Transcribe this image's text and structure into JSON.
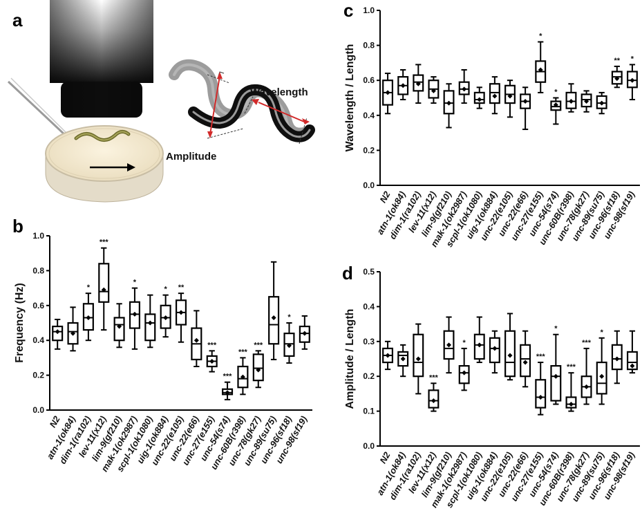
{
  "panels": {
    "a": "a",
    "b": "b",
    "c": "c",
    "d": "d"
  },
  "illustration": {
    "wavelength_label": "Wavelength",
    "amplitude_label": "Amplitude",
    "arrow_color": "#d22a2a"
  },
  "chart_data": [
    {
      "panel": "b",
      "type": "boxplot",
      "ylabel": "Frequency (Hz)",
      "ylim": [
        0.0,
        1.0
      ],
      "yticks": [
        "0.0",
        "0.2",
        "0.4",
        "0.6",
        "0.8",
        "1.0"
      ],
      "grid": false,
      "categories": [
        "N2",
        "atn-1(ok84)",
        "dim-1(ra102)",
        "lev-11(x12)",
        "lim-9(gf210)",
        "mak-1(ok2987)",
        "scpl-1(ok1080)",
        "uig-1(ok884)",
        "unc-22(e105)",
        "unc-22(e66)",
        "unc-27(e155)",
        "unc-54(s74)",
        "unc-60B(r398)",
        "unc-78(gk27)",
        "unc-89(su75)",
        "unc-96(sf18)",
        "unc-98(sf19)"
      ],
      "boxes": [
        {
          "min": 0.35,
          "q1": 0.4,
          "median": 0.45,
          "q3": 0.48,
          "max": 0.52,
          "mean": 0.45,
          "sig": ""
        },
        {
          "min": 0.34,
          "q1": 0.38,
          "median": 0.45,
          "q3": 0.5,
          "max": 0.59,
          "mean": 0.44,
          "sig": ""
        },
        {
          "min": 0.4,
          "q1": 0.46,
          "median": 0.53,
          "q3": 0.61,
          "max": 0.67,
          "mean": 0.53,
          "sig": "*"
        },
        {
          "min": 0.46,
          "q1": 0.62,
          "median": 0.68,
          "q3": 0.84,
          "max": 0.93,
          "mean": 0.69,
          "sig": "***"
        },
        {
          "min": 0.36,
          "q1": 0.4,
          "median": 0.49,
          "q3": 0.53,
          "max": 0.61,
          "mean": 0.48,
          "sig": ""
        },
        {
          "min": 0.35,
          "q1": 0.47,
          "median": 0.55,
          "q3": 0.62,
          "max": 0.7,
          "mean": 0.55,
          "sig": "*"
        },
        {
          "min": 0.36,
          "q1": 0.4,
          "median": 0.5,
          "q3": 0.55,
          "max": 0.66,
          "mean": 0.5,
          "sig": ""
        },
        {
          "min": 0.42,
          "q1": 0.47,
          "median": 0.53,
          "q3": 0.6,
          "max": 0.66,
          "mean": 0.53,
          "sig": "*"
        },
        {
          "min": 0.39,
          "q1": 0.49,
          "median": 0.56,
          "q3": 0.63,
          "max": 0.67,
          "mean": 0.56,
          "sig": "**"
        },
        {
          "min": 0.25,
          "q1": 0.29,
          "median": 0.38,
          "q3": 0.47,
          "max": 0.57,
          "mean": 0.4,
          "sig": ""
        },
        {
          "min": 0.22,
          "q1": 0.25,
          "median": 0.28,
          "q3": 0.31,
          "max": 0.34,
          "mean": 0.28,
          "sig": "***"
        },
        {
          "min": 0.06,
          "q1": 0.09,
          "median": 0.1,
          "q3": 0.12,
          "max": 0.16,
          "mean": 0.1,
          "sig": "***"
        },
        {
          "min": 0.09,
          "q1": 0.13,
          "median": 0.18,
          "q3": 0.25,
          "max": 0.3,
          "mean": 0.19,
          "sig": "***"
        },
        {
          "min": 0.13,
          "q1": 0.17,
          "median": 0.24,
          "q3": 0.32,
          "max": 0.34,
          "mean": 0.23,
          "sig": "***"
        },
        {
          "min": 0.29,
          "q1": 0.38,
          "median": 0.49,
          "q3": 0.65,
          "max": 0.85,
          "mean": 0.53,
          "sig": ""
        },
        {
          "min": 0.27,
          "q1": 0.31,
          "median": 0.38,
          "q3": 0.44,
          "max": 0.5,
          "mean": 0.37,
          "sig": "*"
        },
        {
          "min": 0.35,
          "q1": 0.39,
          "median": 0.44,
          "q3": 0.48,
          "max": 0.54,
          "mean": 0.44,
          "sig": ""
        }
      ]
    },
    {
      "panel": "c",
      "type": "boxplot",
      "ylabel": "Wavelength / Length",
      "ylim": [
        0.0,
        1.0
      ],
      "yticks": [
        "0.0",
        "0.2",
        "0.4",
        "0.6",
        "0.8",
        "1.0"
      ],
      "grid": false,
      "categories": [
        "N2",
        "atn-1(ok84)",
        "dim-1(ra102)",
        "lev-11(x12)",
        "lim-9(gf210)",
        "mak-1(ok2987)",
        "scpl-1(ok1080)",
        "uig-1(ok884)",
        "unc-22(e105)",
        "unc-22(e66)",
        "unc-27(e155)",
        "unc-54(s74)",
        "unc-60B(r398)",
        "unc-78(gk27)",
        "unc-89(su75)",
        "unc-96(sf18)",
        "unc-98(sf19)"
      ],
      "boxes": [
        {
          "min": 0.41,
          "q1": 0.46,
          "median": 0.53,
          "q3": 0.6,
          "max": 0.64,
          "mean": 0.53,
          "sig": ""
        },
        {
          "min": 0.49,
          "q1": 0.52,
          "median": 0.57,
          "q3": 0.62,
          "max": 0.66,
          "mean": 0.57,
          "sig": ""
        },
        {
          "min": 0.47,
          "q1": 0.54,
          "median": 0.59,
          "q3": 0.63,
          "max": 0.69,
          "mean": 0.58,
          "sig": ""
        },
        {
          "min": 0.47,
          "q1": 0.5,
          "median": 0.55,
          "q3": 0.6,
          "max": 0.62,
          "mean": 0.54,
          "sig": ""
        },
        {
          "min": 0.33,
          "q1": 0.41,
          "median": 0.47,
          "q3": 0.54,
          "max": 0.58,
          "mean": 0.47,
          "sig": ""
        },
        {
          "min": 0.47,
          "q1": 0.52,
          "median": 0.55,
          "q3": 0.59,
          "max": 0.66,
          "mean": 0.55,
          "sig": ""
        },
        {
          "min": 0.44,
          "q1": 0.47,
          "median": 0.49,
          "q3": 0.53,
          "max": 0.56,
          "mean": 0.49,
          "sig": ""
        },
        {
          "min": 0.41,
          "q1": 0.47,
          "median": 0.53,
          "q3": 0.58,
          "max": 0.62,
          "mean": 0.51,
          "sig": ""
        },
        {
          "min": 0.39,
          "q1": 0.47,
          "median": 0.52,
          "q3": 0.57,
          "max": 0.6,
          "mean": 0.51,
          "sig": ""
        },
        {
          "min": 0.32,
          "q1": 0.44,
          "median": 0.48,
          "q3": 0.52,
          "max": 0.56,
          "mean": 0.48,
          "sig": ""
        },
        {
          "min": 0.53,
          "q1": 0.59,
          "median": 0.65,
          "q3": 0.71,
          "max": 0.82,
          "mean": 0.66,
          "sig": "*"
        },
        {
          "min": 0.35,
          "q1": 0.43,
          "median": 0.45,
          "q3": 0.48,
          "max": 0.5,
          "mean": 0.46,
          "sig": "*"
        },
        {
          "min": 0.42,
          "q1": 0.44,
          "median": 0.48,
          "q3": 0.53,
          "max": 0.58,
          "mean": 0.48,
          "sig": ""
        },
        {
          "min": 0.42,
          "q1": 0.45,
          "median": 0.49,
          "q3": 0.52,
          "max": 0.54,
          "mean": 0.48,
          "sig": ""
        },
        {
          "min": 0.41,
          "q1": 0.44,
          "median": 0.47,
          "q3": 0.51,
          "max": 0.53,
          "mean": 0.47,
          "sig": ""
        },
        {
          "min": 0.56,
          "q1": 0.58,
          "median": 0.62,
          "q3": 0.65,
          "max": 0.68,
          "mean": 0.61,
          "sig": "**"
        },
        {
          "min": 0.49,
          "q1": 0.56,
          "median": 0.6,
          "q3": 0.65,
          "max": 0.69,
          "mean": 0.6,
          "sig": "*"
        }
      ]
    },
    {
      "panel": "d",
      "type": "boxplot",
      "ylabel": "Amplitude / Length",
      "ylim": [
        0.0,
        0.5
      ],
      "yticks": [
        "0.0",
        "0.1",
        "0.2",
        "0.3",
        "0.4",
        "0.5"
      ],
      "grid": false,
      "categories": [
        "N2",
        "atn-1(ok84)",
        "dim-1(ra102)",
        "lev-11(x12)",
        "lim-9(gf210)",
        "mak-1(ok2987)",
        "scpl-1(ok1080)",
        "uig-1(ok884)",
        "unc-22(e105)",
        "unc-22(e66)",
        "unc-27(e155)",
        "unc-54(s74)",
        "unc-60B(r398)",
        "unc-78(gk27)",
        "unc-89(su75)",
        "unc-96(sf18)",
        "unc-98(sf19)"
      ],
      "boxes": [
        {
          "min": 0.22,
          "q1": 0.24,
          "median": 0.26,
          "q3": 0.28,
          "max": 0.3,
          "mean": 0.26,
          "sig": ""
        },
        {
          "min": 0.2,
          "q1": 0.23,
          "median": 0.26,
          "q3": 0.27,
          "max": 0.29,
          "mean": 0.25,
          "sig": ""
        },
        {
          "min": 0.15,
          "q1": 0.2,
          "median": 0.24,
          "q3": 0.32,
          "max": 0.35,
          "mean": 0.25,
          "sig": ""
        },
        {
          "min": 0.1,
          "q1": 0.11,
          "median": 0.13,
          "q3": 0.16,
          "max": 0.18,
          "mean": 0.13,
          "sig": "***"
        },
        {
          "min": 0.21,
          "q1": 0.25,
          "median": 0.28,
          "q3": 0.33,
          "max": 0.37,
          "mean": 0.29,
          "sig": ""
        },
        {
          "min": 0.16,
          "q1": 0.18,
          "median": 0.21,
          "q3": 0.23,
          "max": 0.28,
          "mean": 0.21,
          "sig": "*"
        },
        {
          "min": 0.24,
          "q1": 0.25,
          "median": 0.29,
          "q3": 0.32,
          "max": 0.37,
          "mean": 0.29,
          "sig": ""
        },
        {
          "min": 0.21,
          "q1": 0.24,
          "median": 0.28,
          "q3": 0.31,
          "max": 0.33,
          "mean": 0.28,
          "sig": ""
        },
        {
          "min": 0.19,
          "q1": 0.2,
          "median": 0.24,
          "q3": 0.33,
          "max": 0.38,
          "mean": 0.26,
          "sig": ""
        },
        {
          "min": 0.17,
          "q1": 0.2,
          "median": 0.25,
          "q3": 0.29,
          "max": 0.33,
          "mean": 0.24,
          "sig": ""
        },
        {
          "min": 0.09,
          "q1": 0.11,
          "median": 0.14,
          "q3": 0.19,
          "max": 0.24,
          "mean": 0.14,
          "sig": "***"
        },
        {
          "min": 0.12,
          "q1": 0.13,
          "median": 0.2,
          "q3": 0.23,
          "max": 0.32,
          "mean": 0.2,
          "sig": "*"
        },
        {
          "min": 0.1,
          "q1": 0.11,
          "median": 0.12,
          "q3": 0.14,
          "max": 0.21,
          "mean": 0.12,
          "sig": "***"
        },
        {
          "min": 0.12,
          "q1": 0.14,
          "median": 0.17,
          "q3": 0.2,
          "max": 0.28,
          "mean": 0.17,
          "sig": "***"
        },
        {
          "min": 0.12,
          "q1": 0.15,
          "median": 0.18,
          "q3": 0.24,
          "max": 0.31,
          "mean": 0.2,
          "sig": "*"
        },
        {
          "min": 0.18,
          "q1": 0.22,
          "median": 0.25,
          "q3": 0.29,
          "max": 0.33,
          "mean": 0.25,
          "sig": ""
        },
        {
          "min": 0.21,
          "q1": 0.22,
          "median": 0.24,
          "q3": 0.27,
          "max": 0.33,
          "mean": 0.23,
          "sig": ""
        }
      ]
    }
  ]
}
